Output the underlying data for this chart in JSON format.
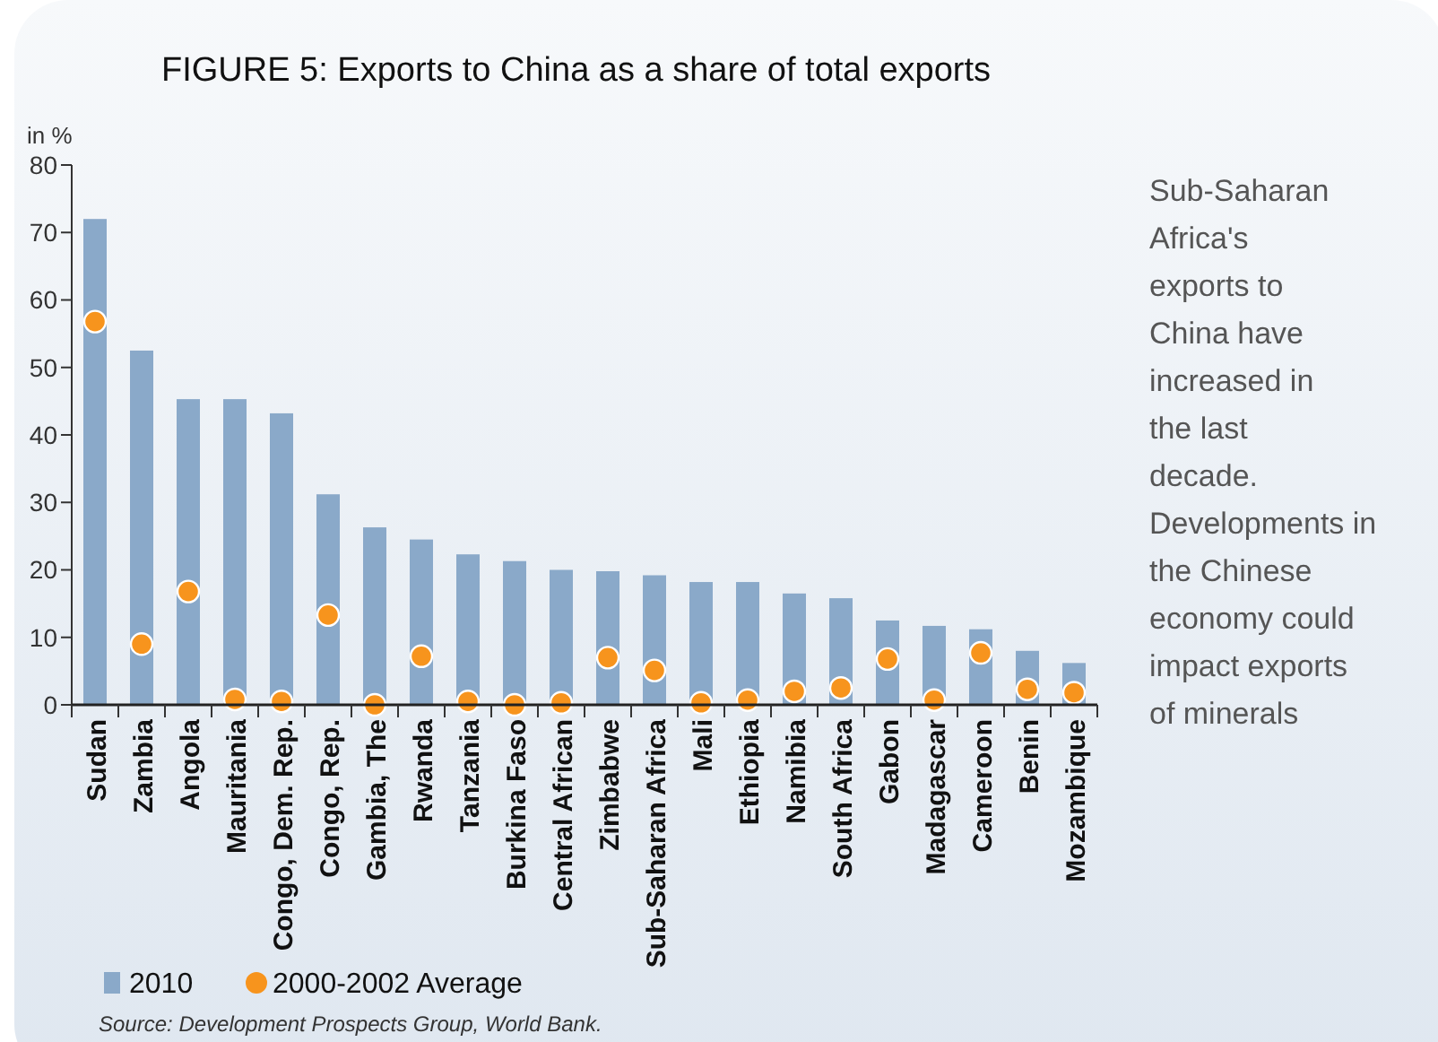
{
  "chart_data": {
    "type": "bar",
    "title": "FIGURE 5: Exports to China as a share of total exports",
    "ylabel": "in %",
    "categories": [
      "Sudan",
      "Zambia",
      "Angola",
      "Mauritania",
      "Congo, Dem. Rep.",
      "Congo, Rep.",
      "Gambia, The",
      "Rwanda",
      "Tanzania",
      "Burkina Faso",
      "Central African",
      "Zimbabwe",
      "Sub-Saharan Africa",
      "Mali",
      "Ethiopia",
      "Namibia",
      "South Africa",
      "Gabon",
      "Madagascar",
      "Cameroon",
      "Benin",
      "Mozambique"
    ],
    "series": [
      {
        "name": "2010",
        "color": "#8aa9c9",
        "values": [
          72,
          52.5,
          45.3,
          45.3,
          43.2,
          31.2,
          26.3,
          24.5,
          22.3,
          21.3,
          20,
          19.8,
          19.2,
          18.2,
          18.2,
          16.5,
          15.8,
          12.5,
          11.7,
          11.2,
          8,
          6.2
        ]
      },
      {
        "name": "2000-2002 Average",
        "type": "scatter",
        "color": "#f7941d",
        "marker": "circle",
        "values": [
          56.8,
          9,
          16.8,
          0.8,
          0.5,
          13.3,
          0,
          7.2,
          0.5,
          0,
          0.3,
          7,
          5.1,
          0.3,
          0.7,
          2,
          2.5,
          6.8,
          0.7,
          7.7,
          2.3,
          1.8
        ]
      }
    ],
    "ylim": [
      0,
      80
    ],
    "yticks": [
      0,
      10,
      20,
      30,
      40,
      50,
      60,
      70,
      80
    ],
    "grid": false,
    "legend": "bottom left",
    "annotations": [
      "Sub-Saharan Africa's exports to China have increased in the last decade. Developments in the Chinese economy could impact exports of minerals",
      "Source: Development Prospects Group, World Bank."
    ]
  }
}
